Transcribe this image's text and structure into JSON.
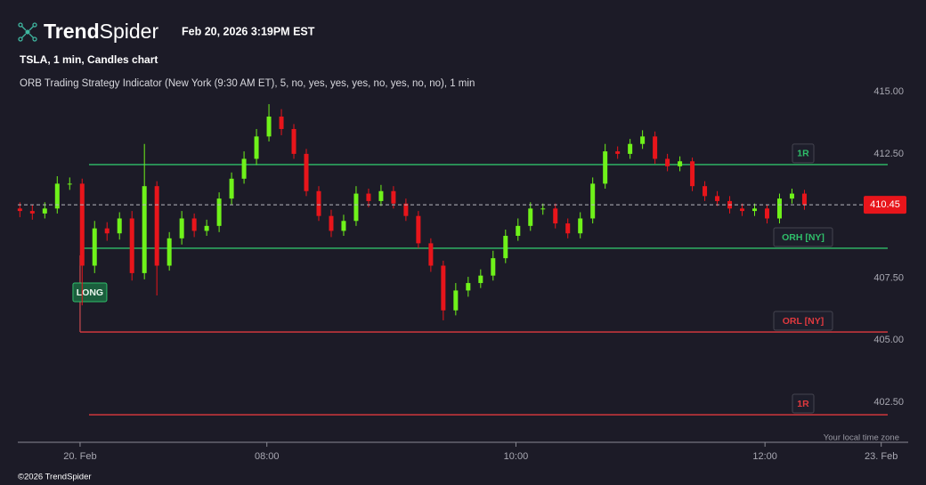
{
  "header": {
    "brand": [
      "Trend",
      "Spider"
    ],
    "timestamp": "Feb 20, 2026 3:19PM EST"
  },
  "footer": "©2026 TrendSpider",
  "chart_data": {
    "type": "candlestick",
    "title": "TSLA, 1 min, Candles chart",
    "subtitle": "ORB Trading Strategy Indicator (New York (9:30 AM ET), 5, no, yes, yes, yes, no, yes, no, no), 1 min",
    "x_note": "Your local time zone",
    "up_color": "#6ff21a",
    "down_color": "#e8151b",
    "x": [
      361,
      367,
      373,
      379,
      385,
      391,
      397,
      403,
      409,
      415,
      421,
      427,
      433,
      439,
      445,
      451,
      457,
      463,
      469,
      475,
      481,
      487,
      493,
      499,
      505,
      511,
      517,
      523,
      529,
      535,
      541,
      547,
      553,
      559,
      565,
      571,
      577,
      583,
      589,
      595,
      601,
      607,
      613,
      619,
      625,
      631,
      637,
      643,
      649,
      655,
      661,
      667,
      673,
      679,
      685,
      691,
      697,
      703,
      709,
      715,
      721,
      727,
      733,
      739
    ],
    "open": [
      410.3,
      410.2,
      410.1,
      410.3,
      411.3,
      411.3,
      408.0,
      409.5,
      409.3,
      409.9,
      407.7,
      411.2,
      408.0,
      409.1,
      409.9,
      409.4,
      409.6,
      410.7,
      411.5,
      412.3,
      413.2,
      414.0,
      413.5,
      412.5,
      411.0,
      410.0,
      409.4,
      409.8,
      410.9,
      410.6,
      411.0,
      410.5,
      410.0,
      408.9,
      408.0,
      406.2,
      407.0,
      407.3,
      407.6,
      408.3,
      409.2,
      409.6,
      410.3,
      410.3,
      409.7,
      409.3,
      409.9,
      411.3,
      412.6,
      412.5,
      412.9,
      413.2,
      412.3,
      412.0,
      412.2,
      411.2,
      410.8,
      410.6,
      410.3,
      410.2,
      410.3,
      409.9,
      410.7,
      410.9
    ],
    "high": [
      410.55,
      410.45,
      410.55,
      411.6,
      411.55,
      411.5,
      409.8,
      409.75,
      410.15,
      410.2,
      412.9,
      411.4,
      409.35,
      410.2,
      410.1,
      409.85,
      410.95,
      411.75,
      412.6,
      413.5,
      414.5,
      414.3,
      413.7,
      412.7,
      411.2,
      410.25,
      410.05,
      411.2,
      411.1,
      411.25,
      411.2,
      410.7,
      410.2,
      409.1,
      408.2,
      407.3,
      407.55,
      407.85,
      408.6,
      409.45,
      409.9,
      410.55,
      410.5,
      410.5,
      409.9,
      410.15,
      411.55,
      412.9,
      412.8,
      413.1,
      413.45,
      413.4,
      412.5,
      412.4,
      412.35,
      411.4,
      411.0,
      410.8,
      410.5,
      410.5,
      410.45,
      410.9,
      411.1,
      411.05
    ],
    "low": [
      409.95,
      409.85,
      409.9,
      410.1,
      411.05,
      406.4,
      407.7,
      409.0,
      409.05,
      407.4,
      407.45,
      406.8,
      407.8,
      408.85,
      409.15,
      409.2,
      409.35,
      410.45,
      411.3,
      412.05,
      413.0,
      413.25,
      412.3,
      410.8,
      409.8,
      409.15,
      409.2,
      409.6,
      410.35,
      410.4,
      410.3,
      409.8,
      408.7,
      407.75,
      405.8,
      406.0,
      406.75,
      407.1,
      407.4,
      408.1,
      409.0,
      409.4,
      410.05,
      409.5,
      409.1,
      409.1,
      409.7,
      411.1,
      412.3,
      412.3,
      412.7,
      412.1,
      411.8,
      411.8,
      411.0,
      410.6,
      410.4,
      410.1,
      410.0,
      410.0,
      409.7,
      409.7,
      410.5,
      410.25
    ],
    "close": [
      410.2,
      410.1,
      410.3,
      411.3,
      411.3,
      408.0,
      409.5,
      409.3,
      409.9,
      407.7,
      411.2,
      408.0,
      409.1,
      409.9,
      409.4,
      409.6,
      410.7,
      411.5,
      412.3,
      413.2,
      414.0,
      413.5,
      412.5,
      411.0,
      410.0,
      409.4,
      409.8,
      410.9,
      410.6,
      411.0,
      410.5,
      410.0,
      408.9,
      408.0,
      406.2,
      407.0,
      407.3,
      407.6,
      408.3,
      409.2,
      409.6,
      410.3,
      410.3,
      409.7,
      409.3,
      409.9,
      411.3,
      412.6,
      412.5,
      412.9,
      413.2,
      412.3,
      412.0,
      412.2,
      411.2,
      410.8,
      410.6,
      410.3,
      410.2,
      410.3,
      409.9,
      410.7,
      410.9,
      410.45
    ],
    "levels": [
      {
        "name": "1R",
        "value": 412.07,
        "color": "#2fbf6a"
      },
      {
        "name": "ORH [NY]",
        "value": 408.7,
        "color": "#2fbf6a"
      },
      {
        "name": "ORL [NY]",
        "value": 405.33,
        "color": "#e0393e"
      },
      {
        "name": "1R",
        "value": 402.0,
        "color": "#e0393e"
      }
    ],
    "signal": {
      "label": "LONG",
      "x": 390,
      "color": "#2fbf6a"
    },
    "last_price_color": "#e8151b",
    "xlim": [
      360,
      789
    ],
    "xticks": [
      {
        "value": 390,
        "label": "20. Feb"
      },
      {
        "value": 480,
        "label": "08:00"
      },
      {
        "value": 600,
        "label": "10:00"
      },
      {
        "value": 720,
        "label": "12:00"
      },
      {
        "value": 776,
        "label": "23. Feb"
      }
    ],
    "ylim": [
      400.89,
      415.29
    ],
    "yticks": [
      {
        "value": 402.5,
        "label": "402.50"
      },
      {
        "value": 405,
        "label": "405.00"
      },
      {
        "value": 407.5,
        "label": "407.50"
      },
      {
        "value": 412.5,
        "label": "412.50"
      },
      {
        "value": 415,
        "label": "415.00"
      }
    ],
    "grid": false
  }
}
